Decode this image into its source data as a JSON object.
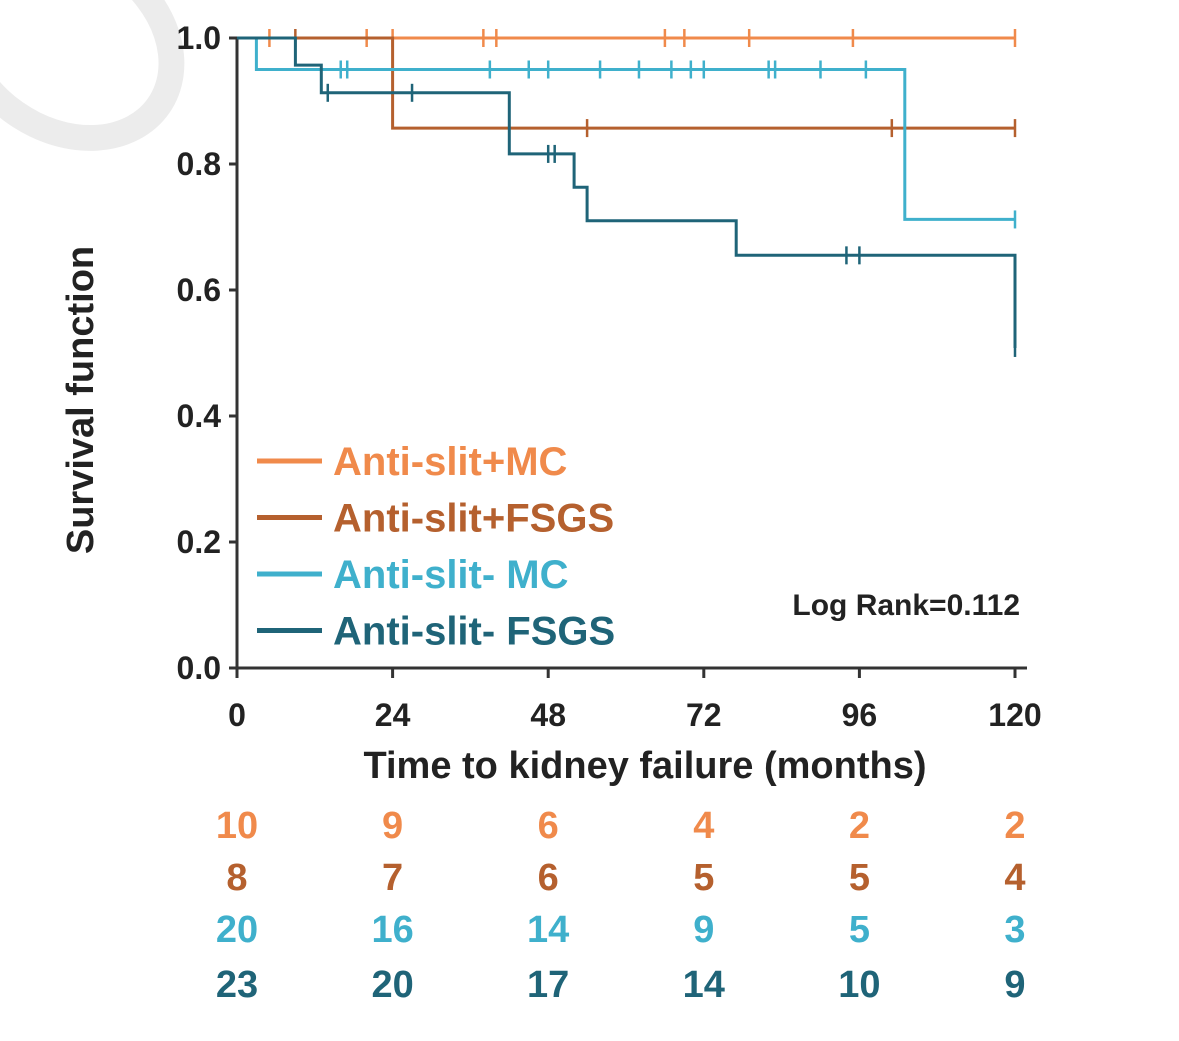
{
  "chart_data": {
    "type": "line",
    "subtype": "kaplan-meier",
    "xlabel": "Time to kidney failure (months)",
    "ylabel": "Survival function",
    "xlim": [
      0,
      120
    ],
    "ylim": [
      0,
      1.0
    ],
    "xticks": [
      "0",
      "24",
      "48",
      "72",
      "96",
      "120"
    ],
    "yticks": [
      "0.0",
      "0.2",
      "0.4",
      "0.6",
      "0.8",
      "1.0"
    ],
    "legend_position": "bottom-left",
    "annotation": "Log Rank=0.112",
    "series": [
      {
        "name": "Anti-slit+MC",
        "color": "#f08a4b",
        "steps": [
          [
            0,
            1.0
          ],
          [
            120,
            1.0
          ]
        ],
        "censored": [
          [
            5,
            1.0
          ],
          [
            20,
            1.0
          ],
          [
            24,
            1.0
          ],
          [
            38,
            1.0
          ],
          [
            40,
            1.0
          ],
          [
            66,
            1.0
          ],
          [
            69,
            1.0
          ],
          [
            79,
            1.0
          ],
          [
            95,
            1.0
          ],
          [
            120,
            1.0
          ]
        ]
      },
      {
        "name": "Anti-slit+FSGS",
        "color": "#b5602e",
        "steps": [
          [
            0,
            1.0
          ],
          [
            24,
            1.0
          ],
          [
            24,
            0.857
          ],
          [
            120,
            0.857
          ]
        ],
        "censored": [
          [
            9,
            1.0
          ],
          [
            54,
            0.857
          ],
          [
            101,
            0.857
          ],
          [
            120,
            0.857
          ]
        ]
      },
      {
        "name": "Anti-slit- MC",
        "color": "#3fb0cc",
        "steps": [
          [
            0,
            1.0
          ],
          [
            3,
            1.0
          ],
          [
            3,
            0.95
          ],
          [
            103,
            0.95
          ],
          [
            103,
            0.712
          ],
          [
            120,
            0.712
          ]
        ],
        "censored": [
          [
            16,
            0.95
          ],
          [
            17,
            0.95
          ],
          [
            39,
            0.95
          ],
          [
            45,
            0.95
          ],
          [
            48,
            0.95
          ],
          [
            56,
            0.95
          ],
          [
            62,
            0.95
          ],
          [
            67,
            0.95
          ],
          [
            70,
            0.95
          ],
          [
            72,
            0.95
          ],
          [
            82,
            0.95
          ],
          [
            83,
            0.95
          ],
          [
            90,
            0.95
          ],
          [
            97,
            0.95
          ],
          [
            120,
            0.712
          ]
        ]
      },
      {
        "name": "Anti-slit- FSGS",
        "color": "#1f6478",
        "steps": [
          [
            0,
            1.0
          ],
          [
            9,
            1.0
          ],
          [
            9,
            0.957
          ],
          [
            13,
            0.957
          ],
          [
            13,
            0.913
          ],
          [
            42,
            0.913
          ],
          [
            42,
            0.816
          ],
          [
            52,
            0.816
          ],
          [
            52,
            0.763
          ],
          [
            54,
            0.763
          ],
          [
            54,
            0.71
          ],
          [
            77,
            0.71
          ],
          [
            77,
            0.655
          ],
          [
            120,
            0.655
          ],
          [
            120,
            0.508
          ]
        ],
        "censored": [
          [
            14,
            0.913
          ],
          [
            27,
            0.913
          ],
          [
            48,
            0.816
          ],
          [
            49,
            0.816
          ],
          [
            94,
            0.655
          ],
          [
            96,
            0.655
          ],
          [
            120,
            0.508
          ]
        ]
      }
    ],
    "risk_table": {
      "times": [
        0,
        24,
        48,
        72,
        96,
        120
      ],
      "rows": [
        {
          "name": "Anti-slit+MC",
          "color": "#f08a4b",
          "values": [
            "10",
            "9",
            "6",
            "4",
            "2",
            "2"
          ]
        },
        {
          "name": "Anti-slit+FSGS",
          "color": "#b5602e",
          "values": [
            "8",
            "7",
            "6",
            "5",
            "5",
            "4"
          ]
        },
        {
          "name": "Anti-slit- MC",
          "color": "#3fb0cc",
          "values": [
            "20",
            "16",
            "14",
            "9",
            "5",
            "3"
          ]
        },
        {
          "name": "Anti-slit- FSGS",
          "color": "#1f6478",
          "values": [
            "23",
            "20",
            "17",
            "14",
            "10",
            "9"
          ]
        }
      ]
    }
  }
}
